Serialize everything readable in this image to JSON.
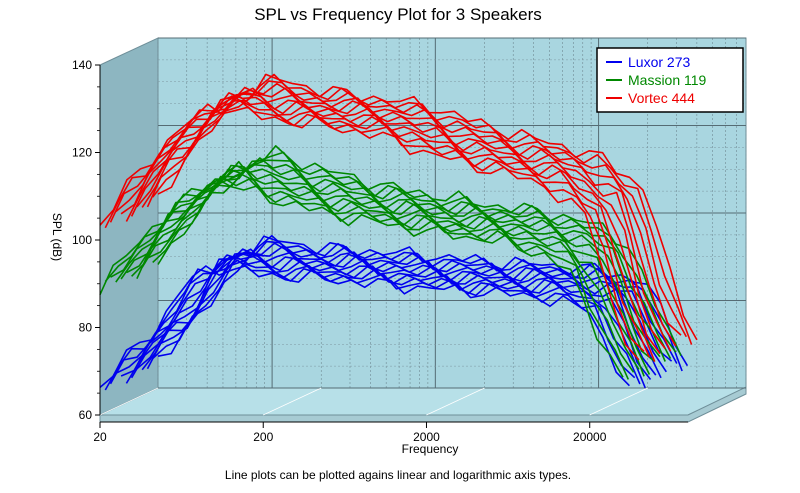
{
  "chart_data": {
    "type": "line",
    "projection": "3d",
    "title": "SPL vs Frequency Plot for 3 Speakers",
    "xlabel": "Frequency",
    "ylabel": "SPL (dB)",
    "caption": "Line plots can be plotted agains linear and logarithmic axis types.",
    "x_scale": "log",
    "xlim": [
      20,
      80000
    ],
    "ylim": [
      60,
      140
    ],
    "x_ticks": [
      {
        "value": 20,
        "label": "20"
      },
      {
        "value": 200,
        "label": "200"
      },
      {
        "value": 2000,
        "label": "2000"
      },
      {
        "value": 20000,
        "label": "20000"
      }
    ],
    "y_ticks": [
      {
        "value": 60,
        "label": "60"
      },
      {
        "value": 80,
        "label": "80"
      },
      {
        "value": 100,
        "label": "100"
      },
      {
        "value": 120,
        "label": "120"
      },
      {
        "value": 140,
        "label": "140"
      }
    ],
    "grid": true,
    "legend_position": "top-right",
    "curves_per_series": 12,
    "series": [
      {
        "name": "Luxor 273",
        "color": "#0000ee",
        "points": [
          [
            20,
            66
          ],
          [
            30,
            74
          ],
          [
            45,
            80
          ],
          [
            70,
            91
          ],
          [
            100,
            94
          ],
          [
            200,
            92
          ],
          [
            500,
            91
          ],
          [
            1000,
            90
          ],
          [
            2000,
            89
          ],
          [
            5000,
            88
          ],
          [
            10000,
            87
          ],
          [
            20000,
            84
          ],
          [
            28000,
            72
          ],
          [
            35000,
            66
          ]
        ]
      },
      {
        "name": "Massion 119",
        "color": "#008800",
        "points": [
          [
            20,
            89
          ],
          [
            30,
            97
          ],
          [
            45,
            104
          ],
          [
            70,
            110
          ],
          [
            100,
            114
          ],
          [
            200,
            110
          ],
          [
            500,
            106
          ],
          [
            1000,
            104
          ],
          [
            2000,
            102
          ],
          [
            5000,
            100
          ],
          [
            10000,
            97
          ],
          [
            15000,
            93
          ],
          [
            25000,
            75
          ],
          [
            32000,
            68
          ]
        ]
      },
      {
        "name": "Vortec 444",
        "color": "#ee0000",
        "points": [
          [
            20,
            103
          ],
          [
            30,
            113
          ],
          [
            45,
            120
          ],
          [
            70,
            127
          ],
          [
            100,
            131
          ],
          [
            200,
            128
          ],
          [
            500,
            126
          ],
          [
            1000,
            124
          ],
          [
            2000,
            120
          ],
          [
            5000,
            116
          ],
          [
            10000,
            113
          ],
          [
            20000,
            105
          ],
          [
            30000,
            80
          ],
          [
            40000,
            72
          ]
        ]
      }
    ]
  }
}
